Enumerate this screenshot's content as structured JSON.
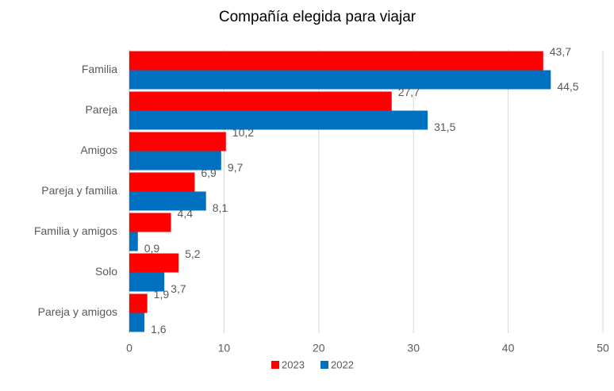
{
  "chart_data": {
    "type": "bar",
    "orientation": "horizontal",
    "title": "Compañía elegida para viajar",
    "categories": [
      "Familia",
      "Pareja",
      "Amigos",
      "Pareja y familia",
      "Familia y amigos",
      "Solo",
      "Pareja y amigos"
    ],
    "series": [
      {
        "name": "2023",
        "color": "#ff0000",
        "values": [
          43.7,
          27.7,
          10.2,
          6.9,
          4.4,
          5.2,
          1.9
        ],
        "value_labels": [
          "43,7",
          "27,7",
          "10,2",
          "6,9",
          "4,4",
          "5,2",
          "1,9"
        ]
      },
      {
        "name": "2022",
        "color": "#0070c0",
        "values": [
          44.5,
          31.5,
          9.7,
          8.1,
          0.9,
          3.7,
          1.6
        ],
        "value_labels": [
          "44,5",
          "31,5",
          "9,7",
          "8,1",
          "0,9",
          "3,7",
          "1,6"
        ]
      }
    ],
    "xlim": [
      0,
      50
    ],
    "xticks": [
      0,
      10,
      20,
      30,
      40,
      50
    ],
    "grid": true,
    "legend": "bottom"
  }
}
